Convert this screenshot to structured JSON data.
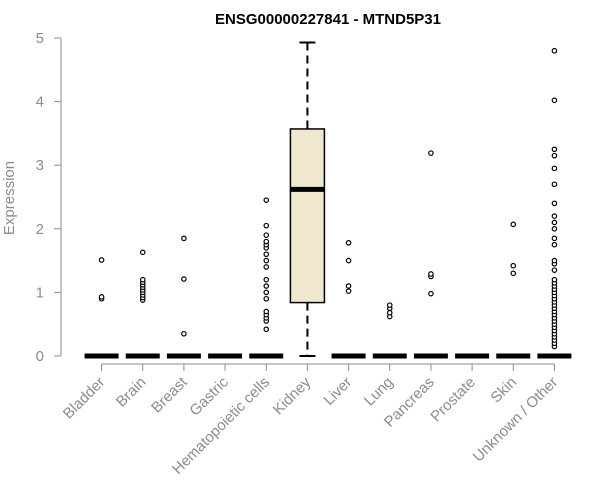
{
  "chart_data": {
    "type": "box",
    "title": "ENSG00000227841 - MTND5P31",
    "xlabel": "",
    "ylabel": "Expression",
    "ylim": [
      0,
      5
    ],
    "yticks": [
      0,
      1,
      2,
      3,
      4,
      5
    ],
    "categories": [
      "Bladder",
      "Brain",
      "Breast",
      "Gastric",
      "Hematopoietic cells",
      "Kidney",
      "Liver",
      "Lung",
      "Pancreas",
      "Prostate",
      "Skin",
      "Unknown / Other"
    ],
    "boxes": [
      {
        "name": "Bladder",
        "q1": 0,
        "median": 0,
        "q3": 0,
        "whisker_low": 0,
        "whisker_high": 0,
        "outliers": [
          0.9,
          0.93,
          1.51
        ]
      },
      {
        "name": "Brain",
        "q1": 0,
        "median": 0,
        "q3": 0,
        "whisker_low": 0,
        "whisker_high": 0,
        "outliers": [
          0.88,
          0.92,
          0.96,
          1.0,
          1.04,
          1.08,
          1.12,
          1.16,
          1.2,
          1.63
        ]
      },
      {
        "name": "Breast",
        "q1": 0,
        "median": 0,
        "q3": 0,
        "whisker_low": 0,
        "whisker_high": 0,
        "outliers": [
          0.35,
          1.21,
          1.85
        ]
      },
      {
        "name": "Gastric",
        "q1": 0,
        "median": 0,
        "q3": 0,
        "whisker_low": 0,
        "whisker_high": 0,
        "outliers": []
      },
      {
        "name": "Hematopoietic cells",
        "q1": 0,
        "median": 0,
        "q3": 0,
        "whisker_low": 0,
        "whisker_high": 0,
        "outliers": [
          0.42,
          0.55,
          0.6,
          0.65,
          0.7,
          0.9,
          1.0,
          1.1,
          1.2,
          1.4,
          1.5,
          1.6,
          1.7,
          1.75,
          1.8,
          1.9,
          2.05,
          2.45
        ]
      },
      {
        "name": "Kidney",
        "q1": 0.84,
        "median": 2.62,
        "q3": 3.57,
        "whisker_low": 0,
        "whisker_high": 4.93,
        "outliers": []
      },
      {
        "name": "Liver",
        "q1": 0,
        "median": 0,
        "q3": 0,
        "whisker_low": 0,
        "whisker_high": 0,
        "outliers": [
          1.02,
          1.1,
          1.5,
          1.78
        ]
      },
      {
        "name": "Lung",
        "q1": 0,
        "median": 0,
        "q3": 0,
        "whisker_low": 0,
        "whisker_high": 0,
        "outliers": [
          0.62,
          0.68,
          0.75,
          0.8
        ]
      },
      {
        "name": "Pancreas",
        "q1": 0,
        "median": 0,
        "q3": 0,
        "whisker_low": 0,
        "whisker_high": 0,
        "outliers": [
          0.98,
          1.25,
          1.29,
          3.19
        ]
      },
      {
        "name": "Prostate",
        "q1": 0,
        "median": 0,
        "q3": 0,
        "whisker_low": 0,
        "whisker_high": 0,
        "outliers": []
      },
      {
        "name": "Skin",
        "q1": 0,
        "median": 0,
        "q3": 0,
        "whisker_low": 0,
        "whisker_high": 0,
        "outliers": [
          1.3,
          1.42,
          2.07
        ]
      },
      {
        "name": "Unknown / Other",
        "q1": 0,
        "median": 0,
        "q3": 0,
        "whisker_low": 0,
        "whisker_high": 0,
        "outliers": [
          0.15,
          0.2,
          0.25,
          0.3,
          0.35,
          0.4,
          0.45,
          0.5,
          0.55,
          0.6,
          0.65,
          0.7,
          0.75,
          0.8,
          0.85,
          0.9,
          0.95,
          1.0,
          1.05,
          1.1,
          1.15,
          1.2,
          1.35,
          1.45,
          1.5,
          1.75,
          1.85,
          2.0,
          2.1,
          2.2,
          2.4,
          2.7,
          2.95,
          3.15,
          3.25,
          4.02,
          4.8
        ]
      }
    ],
    "colors": {
      "box_fill": "#efe8cf",
      "axis": "#8c8c8c",
      "marks": "#000000"
    }
  }
}
